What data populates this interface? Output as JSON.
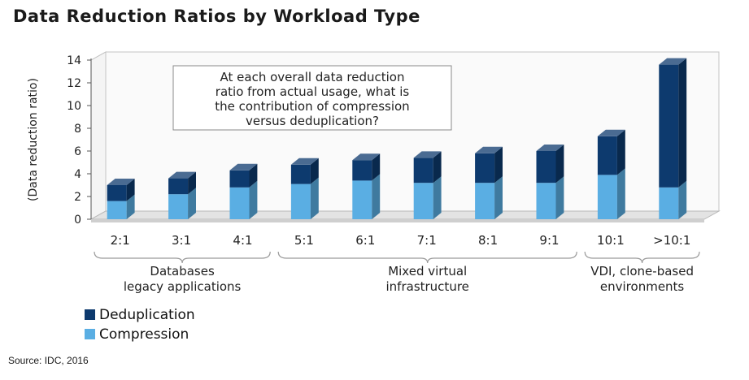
{
  "chart_data": {
    "type": "bar",
    "stacked": true,
    "title": "Data Reduction Ratios by Workload Type",
    "ylabel": "(Data reduction ratio)",
    "ylim": [
      0,
      14
    ],
    "yticks": [
      0,
      2,
      4,
      6,
      8,
      10,
      12,
      14
    ],
    "categories": [
      "2:1",
      "3:1",
      "4:1",
      "5:1",
      "6:1",
      "7:1",
      "8:1",
      "9:1",
      "10:1",
      ">10:1"
    ],
    "series": [
      {
        "name": "Compression",
        "color": "#5aaee3",
        "values": [
          1.6,
          2.2,
          2.8,
          3.1,
          3.4,
          3.2,
          3.2,
          3.2,
          3.9,
          2.8
        ]
      },
      {
        "name": "Deduplication",
        "color": "#0d3a6e",
        "values": [
          1.4,
          1.4,
          1.5,
          1.7,
          1.8,
          2.2,
          2.6,
          2.8,
          3.4,
          10.8
        ]
      }
    ],
    "groups": [
      {
        "label": [
          "Databases",
          "legacy applications"
        ],
        "from": 0,
        "to": 2
      },
      {
        "label": [
          "Mixed virtual",
          "infrastructure"
        ],
        "from": 3,
        "to": 7
      },
      {
        "label": [
          "VDI, clone-based",
          "environments"
        ],
        "from": 8,
        "to": 9
      }
    ],
    "annotation": [
      "At each overall data reduction",
      "ratio from actual usage, what is",
      "the contribution of compression",
      "versus deduplication?"
    ],
    "legend": [
      {
        "label": "Deduplication",
        "color": "#0d3a6e"
      },
      {
        "label": "Compression",
        "color": "#5aaee3"
      }
    ],
    "legend_position": "bottom-left",
    "grid": false,
    "source": "Source: IDC, 2016"
  }
}
